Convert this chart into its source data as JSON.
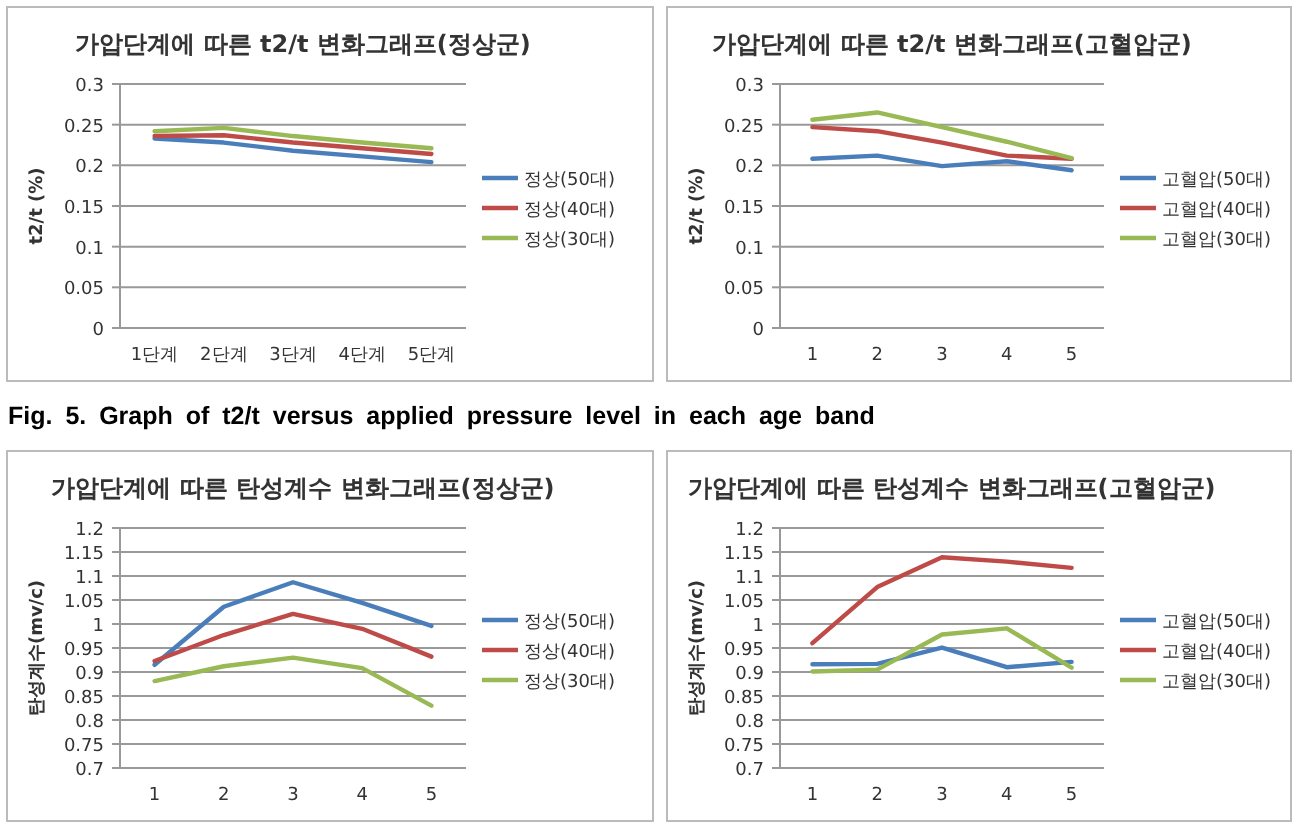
{
  "chart_data": [
    {
      "type": "line",
      "title": "가압단계에 따른 t2/t 변화그래프(정상군)",
      "ylabel": "t2/t (%)",
      "categories": [
        "1단계",
        "2단계",
        "3단계",
        "4단계",
        "5단계"
      ],
      "series": [
        {
          "name": "정상(50대)",
          "color": "#4a7ebb",
          "values": [
            0.233,
            0.228,
            0.218,
            0.211,
            0.204
          ]
        },
        {
          "name": "정상(40대)",
          "color": "#be4b48",
          "values": [
            0.236,
            0.237,
            0.228,
            0.221,
            0.214
          ]
        },
        {
          "name": "정상(30대)",
          "color": "#98b954",
          "values": [
            0.242,
            0.246,
            0.236,
            0.228,
            0.221
          ]
        }
      ],
      "ylim": [
        0,
        0.3
      ],
      "yticks": [
        0,
        0.05,
        0.1,
        0.15,
        0.2,
        0.25,
        0.3
      ],
      "grid": "y",
      "legend": "right",
      "marker": "none",
      "line_style": "solid",
      "annotations": [
        "Fig. 5. Graph of t2/t versus applied pressure level in each age band"
      ]
    },
    {
      "type": "line",
      "title": "가압단계에 따른 t2/t 변화그래프(고혈압군)",
      "ylabel": "t2/t (%)",
      "categories": [
        "1",
        "2",
        "3",
        "4",
        "5"
      ],
      "series": [
        {
          "name": "고혈압(50대)",
          "color": "#4a7ebb",
          "values": [
            0.208,
            0.212,
            0.199,
            0.205,
            0.194
          ]
        },
        {
          "name": "고혈압(40대)",
          "color": "#be4b48",
          "values": [
            0.247,
            0.242,
            0.228,
            0.212,
            0.208
          ]
        },
        {
          "name": "고혈압(30대)",
          "color": "#98b954",
          "values": [
            0.256,
            0.265,
            0.247,
            0.229,
            0.209
          ]
        }
      ],
      "ylim": [
        0,
        0.3
      ],
      "yticks": [
        0,
        0.05,
        0.1,
        0.15,
        0.2,
        0.25,
        0.3
      ],
      "grid": "y",
      "legend": "right",
      "marker": "none",
      "line_style": "solid"
    },
    {
      "type": "line",
      "title": "가압단계에 따른 탄성계수 변화그래프(정상군)",
      "ylabel": "탄성계수(mv/c)",
      "categories": [
        "1",
        "2",
        "3",
        "4",
        "5"
      ],
      "series": [
        {
          "name": "정상(50대)",
          "color": "#4a7ebb",
          "values": [
            0.915,
            1.036,
            1.087,
            1.044,
            0.996
          ]
        },
        {
          "name": "정상(40대)",
          "color": "#be4b48",
          "values": [
            0.923,
            0.977,
            1.021,
            0.99,
            0.932
          ]
        },
        {
          "name": "정상(30대)",
          "color": "#98b954",
          "values": [
            0.881,
            0.912,
            0.93,
            0.908,
            0.83
          ]
        }
      ],
      "ylim": [
        0.7,
        1.2
      ],
      "yticks": [
        0.7,
        0.75,
        0.8,
        0.85,
        0.9,
        0.95,
        1,
        1.05,
        1.1,
        1.15,
        1.2
      ],
      "grid": "y",
      "legend": "right",
      "marker": "none",
      "line_style": "solid"
    },
    {
      "type": "line",
      "title": "가압단계에 따른 탄성계수 변화그래프(고혈압군)",
      "ylabel": "탄성계수(mv/c)",
      "categories": [
        "1",
        "2",
        "3",
        "4",
        "5"
      ],
      "series": [
        {
          "name": "고혈압(50대)",
          "color": "#4a7ebb",
          "values": [
            0.916,
            0.917,
            0.951,
            0.91,
            0.921
          ]
        },
        {
          "name": "고혈압(40대)",
          "color": "#be4b48",
          "values": [
            0.96,
            1.077,
            1.139,
            1.13,
            1.117
          ]
        },
        {
          "name": "고혈압(30대)",
          "color": "#98b954",
          "values": [
            0.901,
            0.905,
            0.978,
            0.991,
            0.909
          ]
        }
      ],
      "ylim": [
        0.7,
        1.2
      ],
      "yticks": [
        0.7,
        0.75,
        0.8,
        0.85,
        0.9,
        0.95,
        1,
        1.05,
        1.1,
        1.15,
        1.2
      ],
      "grid": "y",
      "legend": "right",
      "marker": "none",
      "line_style": "solid"
    }
  ]
}
